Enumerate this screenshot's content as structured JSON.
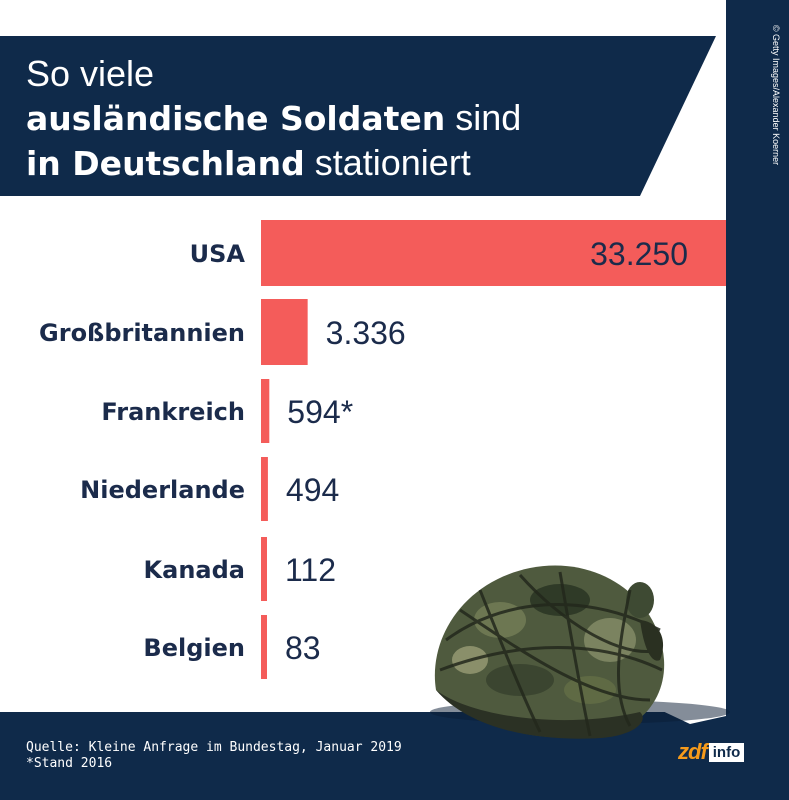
{
  "header": {
    "title_line1": "So viele",
    "title_line2_bold": "ausländische Soldaten",
    "title_line2_rest": " sind",
    "title_line3_bold": "in Deutschland",
    "title_line3_rest": " stationiert"
  },
  "photo_credit": "© Getty Images/Alexander Koerner",
  "chart_data": {
    "type": "bar",
    "orientation": "horizontal",
    "categories": [
      "USA",
      "Großbritannien",
      "Frankreich",
      "Niederlande",
      "Kanada",
      "Belgien"
    ],
    "values": [
      33250,
      3336,
      594,
      494,
      112,
      83
    ],
    "value_labels": [
      "33.250",
      "3.336",
      "594*",
      "494",
      "112",
      "83"
    ],
    "title": "So viele ausländische Soldaten sind in Deutschland stationiert",
    "xlabel": "",
    "ylabel": "",
    "grid": false,
    "legend": "none",
    "bar_color": "#f45c5a"
  },
  "footer": {
    "source": "Quelle: Kleine Anfrage im Bundestag, Januar 2019",
    "note": "*Stand 2016"
  },
  "logo": {
    "zdf": "zdf",
    "info": "info"
  },
  "colors": {
    "navy": "#0f2a4a",
    "bar": "#f45c5a",
    "label": "#1b2b4b",
    "logo_orange": "#f59a1b"
  },
  "icons": {
    "helmet": "military-helmet-photo"
  }
}
